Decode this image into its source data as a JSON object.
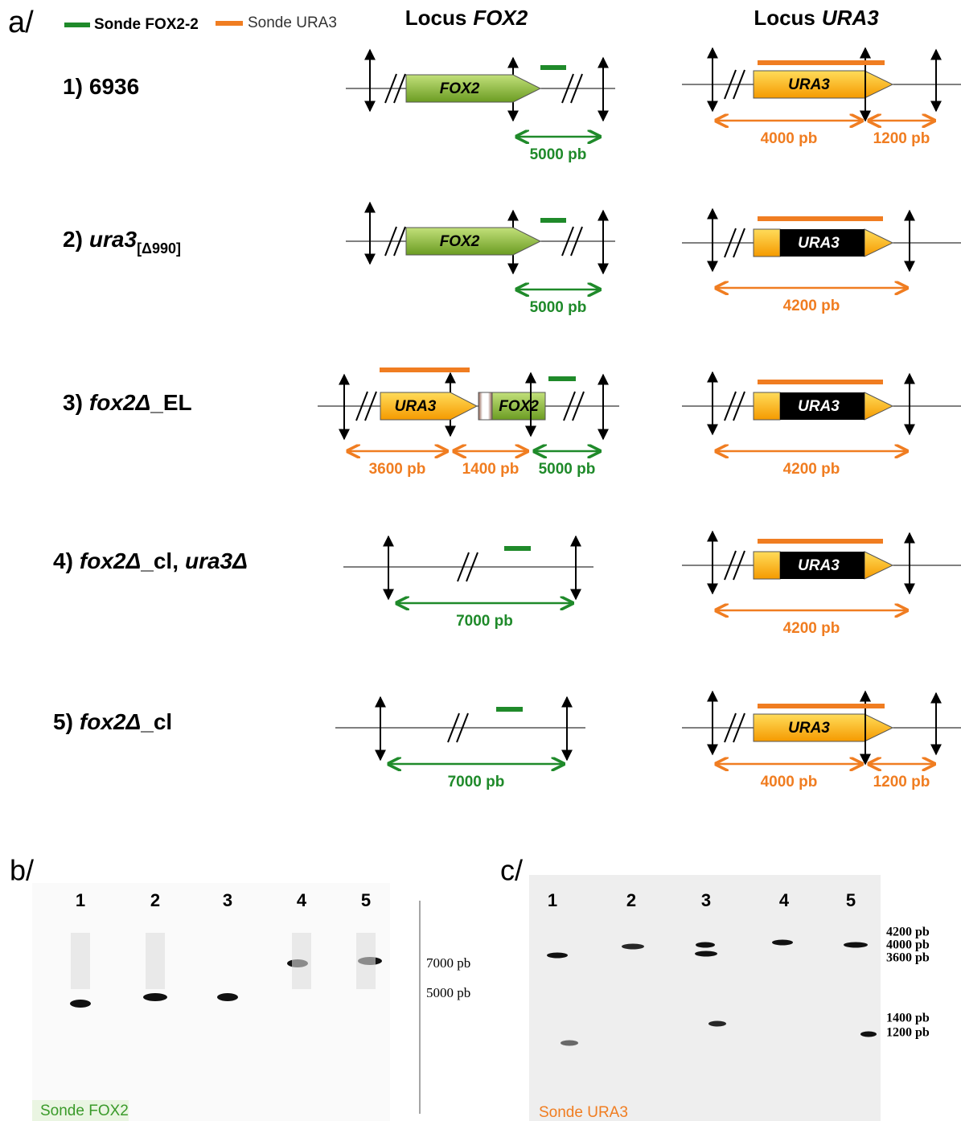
{
  "panel_a": {
    "label": "a/",
    "legend": [
      "Sonde FOX2-2",
      "Sonde URA3"
    ],
    "locus_fox2": {
      "prefix": "Locus",
      "gene": "FOX2"
    },
    "locus_ura3": {
      "prefix": "Locus",
      "gene": "URA3"
    },
    "rows": [
      {
        "number": "1)",
        "name": [
          {
            "text": "6936"
          }
        ],
        "fox2_locus": {
          "genes": [
            "FOX2"
          ],
          "sizes": [
            "5000 pb"
          ]
        },
        "ura3_locus": {
          "genes": [
            "URA3"
          ],
          "sizes": [
            "4000 pb",
            "1200 pb"
          ]
        }
      },
      {
        "number": "2)",
        "name": [
          {
            "text": "ura3",
            "italic": true
          },
          {
            "text": "[Δ990]",
            "sub": true
          }
        ],
        "fox2_locus": {
          "genes": [
            "FOX2"
          ],
          "sizes": [
            "5000 pb"
          ]
        },
        "ura3_locus": {
          "genes": [
            "URA3"
          ],
          "sizes": [
            "4200 pb"
          ]
        }
      },
      {
        "number": "3)",
        "name": [
          {
            "text": "fox2Δ",
            "italic": true
          },
          {
            "text": "_EL"
          }
        ],
        "fox2_locus": {
          "genes": [
            "URA3",
            "FOX2"
          ],
          "sizes": [
            "3600 pb",
            "1400 pb",
            "5000 pb"
          ]
        },
        "ura3_locus": {
          "genes": [
            "URA3"
          ],
          "sizes": [
            "4200 pb"
          ]
        }
      },
      {
        "number": "4)",
        "name": [
          {
            "text": "fox2Δ",
            "italic": true
          },
          {
            "text": "_cl,"
          },
          {
            "text": "ura3Δ",
            "italic": true
          }
        ],
        "fox2_locus": {
          "sizes": [
            "7000 pb"
          ]
        },
        "ura3_locus": {
          "genes": [
            "URA3"
          ],
          "sizes": [
            "4200 pb"
          ]
        }
      },
      {
        "number": "5)",
        "name": [
          {
            "text": "fox2Δ",
            "italic": true
          },
          {
            "text": "_cl"
          }
        ],
        "fox2_locus": {
          "sizes": [
            "7000 pb"
          ]
        },
        "ura3_locus": {
          "genes": [
            "URA3"
          ],
          "sizes": [
            "4000 pb",
            "1200 pb"
          ]
        }
      }
    ]
  },
  "panel_b": {
    "label": "b/",
    "lanes": [
      "1",
      "2",
      "3",
      "4",
      "5"
    ],
    "markers": [
      "7000 pb",
      "5000 pb"
    ],
    "probe": "Sonde FOX2"
  },
  "panel_c": {
    "label": "c/",
    "lanes": [
      "1",
      "2",
      "3",
      "4",
      "5"
    ],
    "markers": [
      "4200 pb",
      "4000 pb",
      "3600 pb",
      "1400 pb",
      "1200 pb"
    ],
    "probe": "Sonde URA3"
  }
}
